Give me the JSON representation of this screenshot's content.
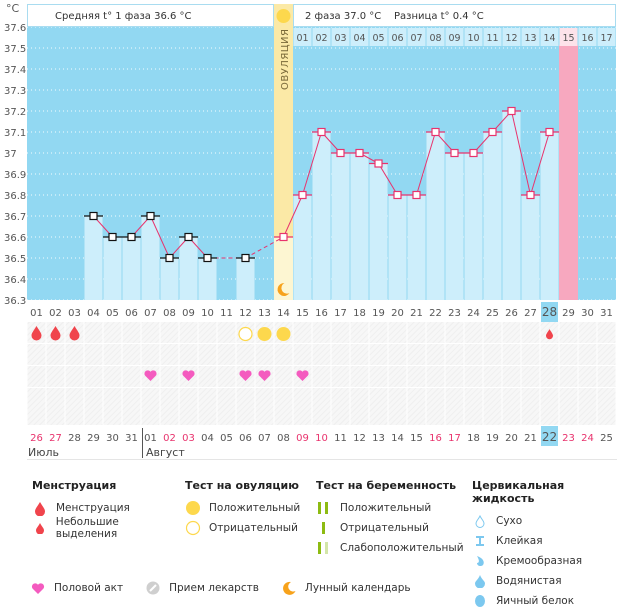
{
  "header": {
    "unit": "°C",
    "phase1_label": "Средняя t° 1 фаза 36.6 °C",
    "phase2_label": "2 фаза 37.0 °C",
    "diff_label": "Разница t° 0.4 °C",
    "ovulation_label": "ОВУЛЯЦИЯ"
  },
  "colors": {
    "chart_bg": "#92d8f2",
    "bar_fill": "#cdeefb",
    "ovulation": "#fbe9a6",
    "period_expected": "#f7a8bf",
    "line": "#e8336d",
    "highlight": "#92d8f2",
    "weekend": "#e8336d"
  },
  "chart_data": {
    "type": "line",
    "title": "",
    "xlabel": "",
    "ylabel": "°C",
    "ylim": [
      36.3,
      37.6
    ],
    "yticks": [
      "37.6",
      "37.5",
      "37.4",
      "37.3",
      "37.2",
      "37.1",
      "37",
      "36.9",
      "36.8",
      "36.7",
      "36.6",
      "36.5",
      "36.4",
      "36.3"
    ],
    "cycle_days": [
      "01",
      "02",
      "03",
      "04",
      "05",
      "06",
      "07",
      "08",
      "09",
      "10",
      "11",
      "12",
      "13",
      "14",
      "15",
      "16",
      "17",
      "18",
      "19",
      "20",
      "21",
      "22",
      "23",
      "24",
      "25",
      "26",
      "27",
      "28",
      "29",
      "30",
      "31"
    ],
    "series": [
      {
        "name": "Базальная температура",
        "values": [
          null,
          null,
          null,
          36.7,
          36.6,
          36.6,
          36.7,
          36.5,
          36.6,
          36.5,
          null,
          36.5,
          null,
          36.6,
          36.8,
          37.1,
          37.0,
          37.0,
          36.95,
          36.8,
          36.8,
          37.1,
          37.0,
          37.0,
          37.1,
          37.2,
          36.8,
          37.1,
          null,
          null,
          null
        ]
      }
    ],
    "ovulation_day": 14,
    "expected_period_day": 29,
    "current_day": 28,
    "phase2_days": [
      "01",
      "02",
      "03",
      "04",
      "05",
      "06",
      "07",
      "08",
      "09",
      "10",
      "11",
      "12",
      "13",
      "14",
      "15",
      "16",
      "17"
    ],
    "phase2_highlight": "15",
    "grid": true,
    "legend": "none"
  },
  "markers": {
    "menstruation_days": [
      1,
      2,
      3
    ],
    "spotting_days": [
      28
    ],
    "ovulation_test_negative_days": [
      12
    ],
    "ovulation_test_positive_days": [
      13,
      14
    ],
    "intercourse_days": [
      7,
      9,
      12,
      13,
      15
    ],
    "moon_day": 14
  },
  "dates": {
    "labels": [
      "26",
      "27",
      "28",
      "29",
      "30",
      "31",
      "01",
      "02",
      "03",
      "04",
      "05",
      "06",
      "07",
      "08",
      "09",
      "10",
      "11",
      "12",
      "13",
      "14",
      "15",
      "16",
      "17",
      "18",
      "19",
      "20",
      "21",
      "22",
      "23",
      "24",
      "25"
    ],
    "weekend_indices": [
      0,
      1,
      7,
      8,
      14,
      15,
      21,
      22,
      28,
      29
    ],
    "today_index": 27,
    "month1": "Июль",
    "month2": "Август"
  },
  "legend": {
    "menstruation": {
      "title": "Менструация",
      "items": [
        "Менструация",
        "Небольшие выделения"
      ]
    },
    "ovulation_test": {
      "title": "Тест на овуляцию",
      "items": [
        "Положительный",
        "Отрицательный"
      ]
    },
    "pregnancy_test": {
      "title": "Тест на беременность",
      "items": [
        "Положительный",
        "Отрицательный",
        "Слабоположительный"
      ]
    },
    "cervical_fluid": {
      "title": "Цервикальная жидкость",
      "items": [
        "Сухо",
        "Клейкая",
        "Кремообразная",
        "Водянистая",
        "Яичный белок"
      ]
    },
    "bottom": [
      "Половой акт",
      "Прием лекарств",
      "Лунный календарь"
    ]
  }
}
